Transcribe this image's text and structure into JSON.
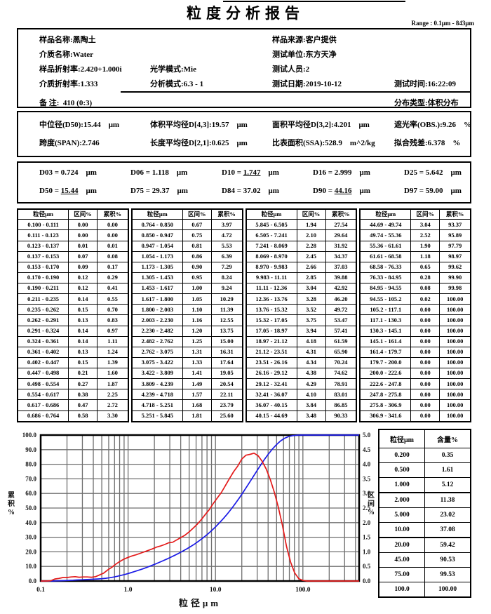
{
  "page": {
    "title": "粒度分析报告",
    "range_note": "Range : 0.1μm - 843μm"
  },
  "info": {
    "sample_name": {
      "label": "样品名称:",
      "value": "黑陶土"
    },
    "sample_source": {
      "label": "样品来源:",
      "value": "客户提供"
    },
    "medium_name": {
      "label": "介质名称:",
      "value": "Water"
    },
    "test_org": {
      "label": "测试单位:",
      "value": "东方天净"
    },
    "sample_ri": {
      "label": "样品折射率:",
      "value": "2.420+1.000i"
    },
    "optical_mode": {
      "label": "光学模式:",
      "value": "Mie"
    },
    "test_operator": {
      "label": "测试人员:",
      "value": "2"
    },
    "medium_ri": {
      "label": "介质折射率:",
      "value": "1.333"
    },
    "analysis_mode": {
      "label": "分析模式:",
      "value": "6.3 - 1"
    },
    "test_date": {
      "label": "测试日期:",
      "value": "2019-10-12"
    },
    "test_time": {
      "label": "测试时间:",
      "value": "16:22:09"
    },
    "remark": {
      "label": "备 注:",
      "value": "410  (0:3)"
    },
    "dist_type": {
      "label": "分布类型:",
      "value": "体积分布"
    }
  },
  "stats": {
    "rows": [
      [
        {
          "label": "中位径(D50):",
          "value": "15.44",
          "unit": "μm"
        },
        {
          "label": "体积平均径D[4,3]:",
          "value": "19.57",
          "unit": "μm"
        },
        {
          "label": "面积平均径D[3,2]:",
          "value": "4.201",
          "unit": "μm"
        },
        {
          "label": "遮光率(OBS.):",
          "value": "9.26",
          "unit": "%"
        }
      ],
      [
        {
          "label": "跨度(SPAN):",
          "value": "2.746",
          "unit": ""
        },
        {
          "label": "长度平均径D[2,1]:",
          "value": "0.625",
          "unit": "μm"
        },
        {
          "label": "比表面积(SSA):",
          "value": "528.9",
          "unit": "m^2/kg"
        },
        {
          "label": "拟合残差:",
          "value": "6.378",
          "unit": "%"
        }
      ]
    ]
  },
  "dvalues": [
    {
      "name": "D03",
      "value": "0.724",
      "unit": "μm",
      "underline": false
    },
    {
      "name": "D06",
      "value": "1.118",
      "unit": "μm",
      "underline": false
    },
    {
      "name": "D10",
      "value": "1.747",
      "unit": "μm",
      "underline": true
    },
    {
      "name": "D16",
      "value": "2.999",
      "unit": "μm",
      "underline": false
    },
    {
      "name": "D25",
      "value": "5.642",
      "unit": "μm",
      "underline": false
    },
    {
      "name": "D50",
      "value": "15.44",
      "unit": "μm",
      "underline": true
    },
    {
      "name": "D75",
      "value": "29.37",
      "unit": "μm",
      "underline": false
    },
    {
      "name": "D84",
      "value": "37.02",
      "unit": "μm",
      "underline": false
    },
    {
      "name": "D90",
      "value": "44.16",
      "unit": "μm",
      "underline": true
    },
    {
      "name": "D97",
      "value": "59.00",
      "unit": "μm",
      "underline": false
    }
  ],
  "main_table": {
    "headers": [
      "粒径μm",
      "区间%",
      "累积%"
    ],
    "groups": [
      [
        [
          "0.100 - 0.111",
          "0.00",
          "0.00"
        ],
        [
          "0.111 - 0.123",
          "0.00",
          "0.00"
        ],
        [
          "0.123 - 0.137",
          "0.01",
          "0.01"
        ],
        [
          "0.137 - 0.153",
          "0.07",
          "0.08"
        ],
        [
          "0.153 - 0.170",
          "0.09",
          "0.17"
        ],
        [
          "0.170 - 0.190",
          "0.12",
          "0.29"
        ],
        [
          "0.190 - 0.211",
          "0.12",
          "0.41"
        ],
        [
          "0.211 - 0.235",
          "0.14",
          "0.55"
        ],
        [
          "0.235 - 0.262",
          "0.15",
          "0.70"
        ],
        [
          "0.262 - 0.291",
          "0.13",
          "0.83"
        ],
        [
          "0.291 - 0.324",
          "0.14",
          "0.97"
        ],
        [
          "0.324 - 0.361",
          "0.14",
          "1.11"
        ],
        [
          "0.361 - 0.402",
          "0.13",
          "1.24"
        ],
        [
          "0.402 - 0.447",
          "0.15",
          "1.39"
        ],
        [
          "0.447 - 0.498",
          "0.21",
          "1.60"
        ],
        [
          "0.498 - 0.554",
          "0.27",
          "1.87"
        ],
        [
          "0.554 - 0.617",
          "0.38",
          "2.25"
        ],
        [
          "0.617 - 0.686",
          "0.47",
          "2.72"
        ],
        [
          "0.686 - 0.764",
          "0.58",
          "3.30"
        ]
      ],
      [
        [
          "0.764 - 0.850",
          "0.67",
          "3.97"
        ],
        [
          "0.850 - 0.947",
          "0.75",
          "4.72"
        ],
        [
          "0.947 - 1.054",
          "0.81",
          "5.53"
        ],
        [
          "1.054 - 1.173",
          "0.86",
          "6.39"
        ],
        [
          "1.173 - 1.305",
          "0.90",
          "7.29"
        ],
        [
          "1.305 - 1.453",
          "0.95",
          "8.24"
        ],
        [
          "1.453 - 1.617",
          "1.00",
          "9.24"
        ],
        [
          "1.617 - 1.800",
          "1.05",
          "10.29"
        ],
        [
          "1.800 - 2.003",
          "1.10",
          "11.39"
        ],
        [
          "2.003 - 2.230",
          "1.16",
          "12.55"
        ],
        [
          "2.230 - 2.482",
          "1.20",
          "13.75"
        ],
        [
          "2.482 - 2.762",
          "1.25",
          "15.00"
        ],
        [
          "2.762 - 3.075",
          "1.31",
          "16.31"
        ],
        [
          "3.075 - 3.422",
          "1.33",
          "17.64"
        ],
        [
          "3.422 - 3.809",
          "1.41",
          "19.05"
        ],
        [
          "3.809 - 4.239",
          "1.49",
          "20.54"
        ],
        [
          "4.239 - 4.718",
          "1.57",
          "22.11"
        ],
        [
          "4.718 - 5.251",
          "1.68",
          "23.79"
        ],
        [
          "5.251 - 5.845",
          "1.81",
          "25.60"
        ]
      ],
      [
        [
          "5.845 - 6.505",
          "1.94",
          "27.54"
        ],
        [
          "6.505 - 7.241",
          "2.10",
          "29.64"
        ],
        [
          "7.241 - 8.069",
          "2.28",
          "31.92"
        ],
        [
          "8.069 - 8.970",
          "2.45",
          "34.37"
        ],
        [
          "8.970 - 9.983",
          "2.66",
          "37.03"
        ],
        [
          "9.983 - 11.11",
          "2.85",
          "39.88"
        ],
        [
          "11.11 - 12.36",
          "3.04",
          "42.92"
        ],
        [
          "12.36 - 13.76",
          "3.28",
          "46.20"
        ],
        [
          "13.76 - 15.32",
          "3.52",
          "49.72"
        ],
        [
          "15.32 - 17.05",
          "3.75",
          "53.47"
        ],
        [
          "17.05 - 18.97",
          "3.94",
          "57.41"
        ],
        [
          "18.97 - 21.12",
          "4.18",
          "61.59"
        ],
        [
          "21.12 - 23.51",
          "4.31",
          "65.90"
        ],
        [
          "23.51 - 26.16",
          "4.34",
          "70.24"
        ],
        [
          "26.16 - 29.12",
          "4.38",
          "74.62"
        ],
        [
          "29.12 - 32.41",
          "4.29",
          "78.91"
        ],
        [
          "32.41 - 36.07",
          "4.10",
          "83.01"
        ],
        [
          "36.07 - 40.15",
          "3.84",
          "86.85"
        ],
        [
          "40.15 - 44.69",
          "3.48",
          "90.33"
        ]
      ],
      [
        [
          "44.69 - 49.74",
          "3.04",
          "93.37"
        ],
        [
          "49.74 - 55.36",
          "2.52",
          "95.89"
        ],
        [
          "55.36 - 61.61",
          "1.90",
          "97.79"
        ],
        [
          "61.61 - 68.58",
          "1.18",
          "98.97"
        ],
        [
          "68.58 - 76.33",
          "0.65",
          "99.62"
        ],
        [
          "76.33 - 84.95",
          "0.28",
          "99.90"
        ],
        [
          "84.95 - 94.55",
          "0.08",
          "99.98"
        ],
        [
          "94.55 - 105.2",
          "0.02",
          "100.00"
        ],
        [
          "105.2 - 117.1",
          "0.00",
          "100.00"
        ],
        [
          "117.1 - 130.3",
          "0.00",
          "100.00"
        ],
        [
          "130.3 - 145.1",
          "0.00",
          "100.00"
        ],
        [
          "145.1 - 161.4",
          "0.00",
          "100.00"
        ],
        [
          "161.4 - 179.7",
          "0.00",
          "100.00"
        ],
        [
          "179.7 - 200.0",
          "0.00",
          "100.00"
        ],
        [
          "200.0 - 222.6",
          "0.00",
          "100.00"
        ],
        [
          "222.6 - 247.8",
          "0.00",
          "100.00"
        ],
        [
          "247.8 - 275.8",
          "0.00",
          "100.00"
        ],
        [
          "275.8 - 306.9",
          "0.00",
          "100.00"
        ],
        [
          "306.9 - 341.6",
          "0.00",
          "100.00"
        ]
      ]
    ]
  },
  "side_table": {
    "headers": [
      "粒径μm",
      "含量%"
    ],
    "rows": [
      [
        "0.200",
        "0.35"
      ],
      [
        "0.500",
        "1.61"
      ],
      [
        "1.000",
        "5.12"
      ],
      [
        "2.000",
        "11.38"
      ],
      [
        "5.000",
        "23.02"
      ],
      [
        "10.00",
        "37.08"
      ],
      [
        "20.00",
        "59.42"
      ],
      [
        "45.00",
        "90.53"
      ],
      [
        "75.00",
        "99.53"
      ],
      [
        "100.0",
        "100.00"
      ]
    ]
  },
  "chart_data": {
    "type": "line",
    "x_scale": "log",
    "grid": true,
    "legend": false,
    "xlabel": "粒径μm",
    "ylabel_left": "累积%",
    "ylabel_right": "区间%",
    "xlim": [
      0.1,
      440
    ],
    "ylim_left": [
      0,
      100
    ],
    "ylim_right": [
      0,
      5
    ],
    "x_ticks": [
      0.1,
      1,
      10,
      100
    ],
    "x_tick_labels": [
      "0.1",
      "1.0",
      "10.0",
      "100.0"
    ],
    "left_ticks": [
      "100.0",
      "90.0",
      "80.0",
      "70.0",
      "60.0",
      "50.0",
      "40.0",
      "30.0",
      "20.0",
      "10.0",
      "0.0"
    ],
    "right_ticks": [
      "5.0",
      "4.5",
      "4.0",
      "3.5",
      "3.0",
      "2.5",
      "2.0",
      "1.5",
      "1.0",
      "0.5",
      "0.0"
    ],
    "grid_color": "#6f6f6f",
    "series": [
      {
        "key": "cumulative-curve",
        "name": "累积%",
        "axis": "left",
        "color": "#1a1ae6",
        "x": [
          0.1,
          0.111,
          0.123,
          0.137,
          0.153,
          0.17,
          0.19,
          0.211,
          0.235,
          0.262,
          0.291,
          0.324,
          0.361,
          0.402,
          0.447,
          0.498,
          0.554,
          0.617,
          0.686,
          0.764,
          0.85,
          0.947,
          1.054,
          1.173,
          1.305,
          1.453,
          1.617,
          1.8,
          2.003,
          2.23,
          2.482,
          2.762,
          3.075,
          3.422,
          3.809,
          4.239,
          4.718,
          5.251,
          5.845,
          6.505,
          7.241,
          8.069,
          8.97,
          9.983,
          11.11,
          12.36,
          13.76,
          15.32,
          17.05,
          18.97,
          21.12,
          23.51,
          26.16,
          29.12,
          32.41,
          36.07,
          40.15,
          44.69,
          49.74,
          55.36,
          61.61,
          68.58,
          76.33,
          84.95,
          94.55,
          105.2,
          440
        ],
        "y": [
          0,
          0.0,
          0.0,
          0.01,
          0.08,
          0.17,
          0.29,
          0.41,
          0.55,
          0.7,
          0.83,
          0.97,
          1.11,
          1.24,
          1.39,
          1.6,
          1.87,
          2.25,
          2.72,
          3.3,
          3.97,
          4.72,
          5.53,
          6.39,
          7.29,
          8.24,
          9.24,
          10.29,
          11.39,
          12.55,
          13.75,
          15.0,
          16.31,
          17.64,
          19.05,
          20.54,
          22.11,
          23.79,
          25.6,
          27.54,
          29.64,
          31.92,
          34.37,
          37.03,
          39.88,
          42.92,
          46.2,
          49.72,
          53.47,
          57.41,
          61.59,
          65.9,
          70.24,
          74.62,
          78.91,
          83.01,
          86.85,
          90.33,
          93.37,
          95.89,
          97.79,
          98.97,
          99.62,
          99.9,
          99.98,
          100.0,
          100.0
        ]
      },
      {
        "key": "interval-curve",
        "name": "区间%",
        "axis": "right",
        "color": "#e41a1a",
        "x": [
          0.1,
          0.105,
          0.117,
          0.13,
          0.145,
          0.161,
          0.18,
          0.2,
          0.223,
          0.248,
          0.276,
          0.307,
          0.342,
          0.381,
          0.424,
          0.472,
          0.525,
          0.585,
          0.651,
          0.724,
          0.806,
          0.897,
          0.999,
          1.112,
          1.237,
          1.377,
          1.533,
          1.706,
          1.899,
          2.114,
          2.353,
          2.619,
          2.915,
          3.244,
          3.611,
          4.019,
          4.473,
          4.979,
          5.541,
          6.166,
          6.865,
          7.642,
          8.507,
          9.464,
          10.53,
          11.72,
          13.04,
          14.52,
          16.17,
          17.99,
          20.02,
          22.28,
          24.8,
          27.6,
          30.72,
          34.19,
          38.05,
          42.36,
          47.15,
          52.47,
          58.4,
          64.99,
          72.35,
          80.52,
          89.62,
          99.74,
          111.0,
          440
        ],
        "y": [
          0,
          0.0,
          0.0,
          0.01,
          0.07,
          0.09,
          0.12,
          0.12,
          0.14,
          0.15,
          0.13,
          0.14,
          0.14,
          0.13,
          0.15,
          0.21,
          0.27,
          0.38,
          0.47,
          0.58,
          0.67,
          0.75,
          0.81,
          0.86,
          0.9,
          0.95,
          1.0,
          1.05,
          1.1,
          1.16,
          1.2,
          1.25,
          1.31,
          1.33,
          1.41,
          1.49,
          1.57,
          1.68,
          1.81,
          1.94,
          2.1,
          2.28,
          2.45,
          2.66,
          2.85,
          3.04,
          3.28,
          3.52,
          3.75,
          3.94,
          4.18,
          4.31,
          4.34,
          4.38,
          4.29,
          4.1,
          3.84,
          3.48,
          3.04,
          2.52,
          1.9,
          1.18,
          0.65,
          0.28,
          0.08,
          0.02,
          0.0,
          0
        ]
      }
    ]
  }
}
